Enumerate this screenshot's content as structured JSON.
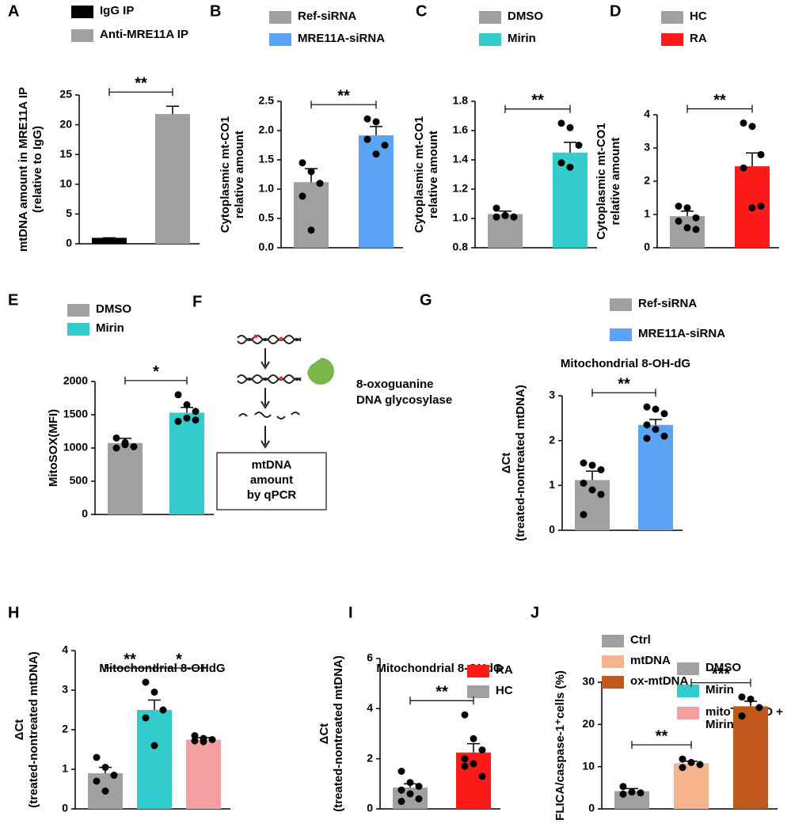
{
  "chart_data": [
    {
      "type": "bar",
      "label": "A",
      "ylabel": [
        "mtDNA amount in MRE11A IP",
        "(relative to IgG)"
      ],
      "ylim": [
        0,
        25
      ],
      "yticks": [
        0,
        5,
        10,
        15,
        20,
        25
      ],
      "series": [
        {
          "name": "IgG IP",
          "color": "#000000",
          "value": 1,
          "error": 0,
          "points": []
        },
        {
          "name": "Anti-MRE11A IP",
          "color": "#a0a0a0",
          "value": 21.8,
          "error": 1.3,
          "points": []
        }
      ],
      "significance": [
        {
          "between": [
            "IgG IP",
            "Anti-MRE11A IP"
          ],
          "label": "**"
        }
      ]
    },
    {
      "type": "bar",
      "label": "B",
      "ylabel": [
        "Cytoplasmic mt-CO1",
        "relative amount"
      ],
      "ylim": [
        0,
        2.5
      ],
      "yticks": [
        {
          "value": 0,
          "label": "0.0"
        },
        0.5,
        {
          "value": 1,
          "label": "1.0"
        },
        1.5,
        {
          "value": 2,
          "label": "2.0"
        },
        2.5
      ],
      "series": [
        {
          "name": "Ref-siRNA",
          "color": "#a0a0a0",
          "value": 1.12,
          "error": 0.23,
          "points": [
            1.45,
            1.3,
            1.1,
            0.88,
            0.3
          ]
        },
        {
          "name": "MRE11A-siRNA",
          "color": "#5ba3f5",
          "value": 1.92,
          "error": 0.15,
          "points": [
            2.2,
            2.15,
            1.75,
            1.85,
            1.6
          ]
        }
      ],
      "significance": [
        {
          "between": [
            "Ref-siRNA",
            "MRE11A-siRNA"
          ],
          "label": "**"
        }
      ]
    },
    {
      "type": "bar",
      "label": "C",
      "ylabel": [
        "Cytoplasmic mt-CO1",
        "relative amount"
      ],
      "ylim": [
        0.8,
        1.8
      ],
      "yticks": [
        0.8,
        {
          "value": 1,
          "label": "1.0"
        },
        1.2,
        1.4,
        1.6,
        1.8
      ],
      "series": [
        {
          "name": "DMSO",
          "color": "#a0a0a0",
          "value": 1.03,
          "error": 0.02,
          "points": [
            1.07,
            1.02,
            1.01,
            1.01,
            1.02
          ]
        },
        {
          "name": "Mirin",
          "color": "#33cccc",
          "value": 1.45,
          "error": 0.07,
          "points": [
            1.65,
            1.62,
            1.5,
            1.38,
            1.35
          ]
        }
      ],
      "significance": [
        {
          "between": [
            "DMSO",
            "Mirin"
          ],
          "label": "**"
        }
      ]
    },
    {
      "type": "bar",
      "label": "D",
      "ylabel": [
        "Cytoplasmic mt-CO1",
        "relative amount"
      ],
      "ylim": [
        0,
        4
      ],
      "yticks": [
        0,
        1,
        2,
        3,
        4
      ],
      "series": [
        {
          "name": "HC",
          "color": "#a0a0a0",
          "value": 0.95,
          "error": 0.15,
          "points": [
            1.25,
            1.2,
            0.9,
            0.8,
            0.6,
            0.55
          ]
        },
        {
          "name": "RA",
          "color": "#ff1a1a",
          "value": 2.45,
          "error": 0.4,
          "points": [
            3.75,
            3.65,
            2.8,
            2.4,
            1.2,
            1.25
          ]
        }
      ],
      "significance": [
        {
          "between": [
            "HC",
            "RA"
          ],
          "label": "**"
        }
      ]
    },
    {
      "type": "bar",
      "label": "E",
      "ylabel": [
        "MitoSOX(MFI)"
      ],
      "ylim": [
        0,
        2000
      ],
      "yticks": [
        0,
        500,
        1000,
        1500,
        2000
      ],
      "series": [
        {
          "name": "DMSO",
          "color": "#a0a0a0",
          "value": 1075,
          "error": 70,
          "points": [
            1150,
            1080,
            1020,
            1000,
            1050
          ]
        },
        {
          "name": "Mirin",
          "color": "#33cccc",
          "value": 1530,
          "error": 80,
          "points": [
            1800,
            1650,
            1550,
            1400,
            1450,
            1420
          ]
        }
      ],
      "significance": [
        {
          "between": [
            "DMSO",
            "Mirin"
          ],
          "label": "*"
        }
      ]
    },
    {
      "type": "bar",
      "label": "G",
      "title": "Mitochondrial 8-OH-dG",
      "ylabel": [
        "ΔCt",
        "(treated-nontreated mtDNA)"
      ],
      "ylim": [
        0,
        3
      ],
      "yticks": [
        0,
        1,
        2,
        3
      ],
      "series": [
        {
          "name": "Ref-siRNA",
          "color": "#a0a0a0",
          "value": 1.12,
          "error": 0.2,
          "points": [
            1.5,
            1.45,
            1.35,
            1.05,
            0.9,
            0.8,
            0.35
          ]
        },
        {
          "name": "MRE11A-siRNA",
          "color": "#5ba3f5",
          "value": 2.35,
          "error": 0.12,
          "points": [
            2.75,
            2.7,
            2.6,
            2.35,
            2.25,
            2.1,
            2.05
          ]
        }
      ],
      "significance": [
        {
          "between": [
            "Ref-siRNA",
            "MRE11A-siRNA"
          ],
          "label": "**"
        }
      ]
    },
    {
      "type": "bar",
      "label": "H",
      "title": "Mitochondrial 8-OHdG",
      "ylabel": [
        "ΔCt",
        "(treated-nontreated mtDNA)"
      ],
      "ylim": [
        0,
        4
      ],
      "yticks": [
        0,
        1,
        2,
        3,
        4
      ],
      "series": [
        {
          "name": "DMSO",
          "color": "#a0a0a0",
          "value": 0.9,
          "error": 0.15,
          "points": [
            1.3,
            1.05,
            0.85,
            0.7,
            0.45
          ]
        },
        {
          "name": "Mirin",
          "color": "#33cccc",
          "value": 2.5,
          "error": 0.25,
          "points": [
            3.2,
            2.95,
            2.5,
            2.3,
            1.6
          ]
        },
        {
          "name": "mitoTEMPO + Mirin",
          "color": "#f4a0a0",
          "value": 1.75,
          "error": 0.05,
          "points": [
            1.85,
            1.78,
            1.75,
            1.72,
            1.7
          ]
        }
      ],
      "significance": [
        {
          "between": [
            "DMSO",
            "Mirin"
          ],
          "label": "**"
        },
        {
          "between": [
            "Mirin",
            "mitoTEMPO + Mirin"
          ],
          "label": "*"
        }
      ]
    },
    {
      "type": "bar",
      "label": "I",
      "title": "Mitochondrial 8-OHdG",
      "ylabel": [
        "ΔCt",
        "(treated-nontreated mtDNA)"
      ],
      "ylim": [
        0,
        6
      ],
      "yticks": [
        0,
        2,
        4,
        6
      ],
      "legend_order": "reversed",
      "series": [
        {
          "name": "HC",
          "color": "#a0a0a0",
          "value": 0.85,
          "error": 0.15,
          "points": [
            1.5,
            1.05,
            0.9,
            0.75,
            0.6,
            0.4,
            0.3
          ]
        },
        {
          "name": "RA",
          "color": "#ff1a1a",
          "value": 2.25,
          "error": 0.35,
          "points": [
            3.75,
            2.8,
            2.35,
            2.0,
            1.8,
            1.3,
            1.7
          ]
        }
      ],
      "significance": [
        {
          "between": [
            "HC",
            "RA"
          ],
          "label": "**"
        }
      ]
    },
    {
      "type": "bar",
      "label": "J",
      "ylabel": [
        "FLICA/caspase-1⁺cells (%)"
      ],
      "ylim": [
        0,
        30
      ],
      "yticks": [
        0,
        10,
        20,
        30
      ],
      "series": [
        {
          "name": "Ctrl",
          "color": "#a0a0a0",
          "value": 4.2,
          "error": 0.6,
          "points": [
            5.3,
            4.0,
            3.8,
            3.5
          ]
        },
        {
          "name": "mtDNA",
          "color": "#f5b48c",
          "value": 10.8,
          "error": 0.5,
          "points": [
            11.8,
            11.0,
            10.5,
            9.8
          ]
        },
        {
          "name": "ox-mtDNA",
          "color": "#c0581c",
          "value": 24.3,
          "error": 1.2,
          "points": [
            26.5,
            26.0,
            24,
            22
          ]
        }
      ],
      "significance": [
        {
          "between": [
            "Ctrl",
            "mtDNA"
          ],
          "label": "**"
        },
        {
          "between": [
            "mtDNA",
            "ox-mtDNA"
          ],
          "label": "***"
        }
      ]
    }
  ],
  "diagram": {
    "label": "F",
    "enzyme": [
      "8-oxoguanine",
      "DNA glycosylase"
    ],
    "box": [
      "mtDNA",
      "amount",
      "by qPCR"
    ]
  }
}
